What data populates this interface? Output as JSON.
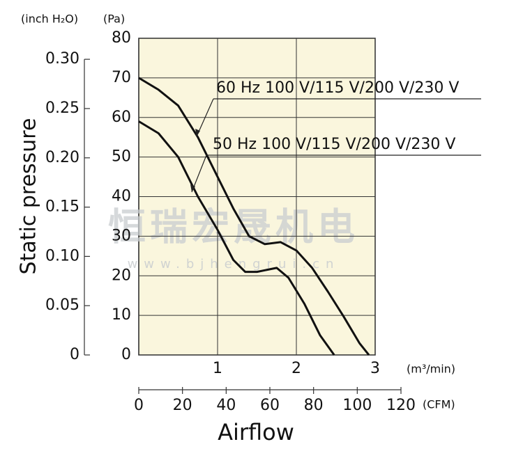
{
  "chart_data": {
    "type": "line",
    "y_label": "Static pressure",
    "x_label": "Airflow",
    "y_unit": "(Pa)",
    "y2_unit": "(inch H₂O)",
    "x_unit": "(m³/min)",
    "x2_unit": "(CFM)",
    "x": [
      0,
      0.25,
      0.5,
      0.75,
      1.0,
      1.2,
      1.35,
      1.4,
      1.5,
      1.6,
      1.75,
      1.8,
      1.9,
      2.0,
      2.1,
      2.2,
      2.3,
      2.4,
      2.48,
      2.6,
      2.8,
      2.92
    ],
    "series": [
      {
        "name": "60 Hz 100 V/115 V/200 V/230 V",
        "color": "#111111",
        "values": [
          70,
          67,
          63,
          55,
          45,
          37,
          null,
          30,
          null,
          28,
          null,
          28.5,
          null,
          26.4,
          null,
          22,
          null,
          16,
          null,
          9.7,
          3,
          0
        ]
      },
      {
        "name": "50 Hz 100 V/115 V/200 V/230 V",
        "color": "#111111",
        "values": [
          59,
          56,
          50,
          40,
          31.6,
          24,
          21,
          null,
          21,
          null,
          22,
          null,
          19.5,
          null,
          13,
          null,
          5,
          null,
          0,
          null,
          null,
          null
        ]
      }
    ],
    "xlim": [
      0,
      3
    ],
    "xticks": [
      1,
      2,
      3
    ],
    "ylim": [
      0,
      80
    ],
    "yticks": [
      0,
      10,
      20,
      30,
      40,
      50,
      60,
      70,
      80
    ],
    "y2lim": [
      0,
      0.3213
    ],
    "y2ticks": [
      0,
      0.05,
      {
        "value": 0.1,
        "label": "0.10"
      },
      0.15,
      {
        "value": 0.2,
        "label": "0.20"
      },
      0.25,
      {
        "value": 0.3,
        "label": "0.30"
      }
    ],
    "x2lim": [
      0,
      120
    ],
    "x2ticks": [
      0,
      20,
      40,
      60,
      80,
      100,
      120
    ],
    "grid": true,
    "background": "#faf6dd",
    "watermark": {
      "text": "恒瑞宏晟机电",
      "url": "www.bjhengrui.cn"
    }
  }
}
